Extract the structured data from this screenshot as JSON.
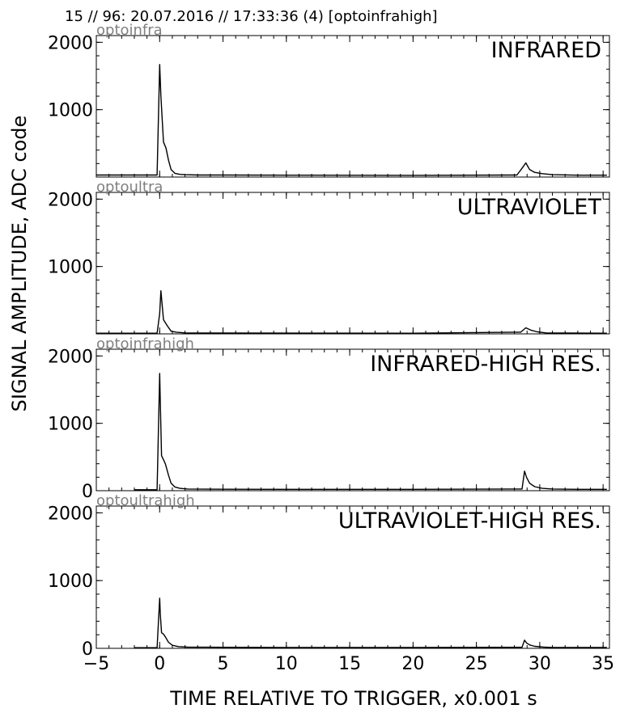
{
  "header": {
    "title": "15 // 96:   20.07.2016 // 17:33:36 (4)  [optoinfrahigh]"
  },
  "chart_data": {
    "type": "line",
    "xlabel": "TIME RELATIVE TO TRIGGER,   x0.001 s",
    "ylabel": "SIGNAL AMPLITUDE,  ADC code",
    "xlim": [
      -5,
      35.5
    ],
    "x_ticks": [
      -5,
      0,
      5,
      10,
      15,
      20,
      25,
      30,
      35
    ],
    "x_tick_labels": [
      "−5",
      "0",
      "5",
      "10",
      "15",
      "20",
      "25",
      "30",
      "35"
    ],
    "grid": false,
    "line_color": "#000000",
    "panels": [
      {
        "channel": "optoinfra",
        "label": "INFRARED",
        "ylim": [
          0,
          2100
        ],
        "y_ticks": [
          1000,
          2000
        ],
        "y_tick_labels": [
          "1000",
          "2000"
        ],
        "x": [
          -5,
          -0.2,
          0.0,
          0.1,
          0.3,
          0.5,
          0.7,
          0.9,
          1.2,
          1.6,
          2,
          3,
          5,
          10,
          20,
          28.2,
          28.6,
          28.9,
          29.2,
          29.6,
          30.2,
          31,
          33,
          35.3
        ],
        "y": [
          30,
          30,
          1670,
          1200,
          520,
          430,
          250,
          110,
          55,
          40,
          35,
          30,
          30,
          28,
          25,
          30,
          130,
          210,
          110,
          70,
          50,
          35,
          28,
          28
        ]
      },
      {
        "channel": "optoultra",
        "label": "ULTRAVIOLET",
        "ylim": [
          0,
          2100
        ],
        "y_ticks": [
          1000,
          2000
        ],
        "y_tick_labels": [
          "1000",
          "2000"
        ],
        "x": [
          -5,
          -0.2,
          0.0,
          0.1,
          0.3,
          0.6,
          0.9,
          1.3,
          2,
          5,
          20,
          28.5,
          28.9,
          29.3,
          29.8,
          30.5,
          35.3
        ],
        "y": [
          10,
          10,
          300,
          640,
          210,
          120,
          40,
          25,
          15,
          12,
          10,
          25,
          90,
          55,
          30,
          15,
          10
        ]
      },
      {
        "channel": "optoinfrahigh",
        "label": "INFRARED-HIGH RES.",
        "ylim": [
          0,
          2100
        ],
        "y_ticks": [
          0,
          1000,
          2000
        ],
        "y_tick_labels": [
          "0",
          "1000",
          "2000"
        ],
        "x": [
          -2,
          -0.2,
          0.0,
          0.05,
          0.15,
          0.3,
          0.45,
          0.7,
          0.9,
          1.2,
          1.6,
          2.2,
          5,
          10,
          20,
          28.6,
          28.8,
          28.95,
          29.2,
          29.6,
          30.2,
          31,
          33,
          35.3
        ],
        "y": [
          15,
          15,
          1740,
          1300,
          520,
          460,
          400,
          230,
          110,
          55,
          35,
          25,
          22,
          20,
          20,
          25,
          290,
          200,
          110,
          60,
          35,
          25,
          20,
          20
        ]
      },
      {
        "channel": "optoultrahigh",
        "label": "ULTRAVIOLET-HIGH RES.",
        "ylim": [
          0,
          2100
        ],
        "y_ticks": [
          0,
          1000,
          2000
        ],
        "y_tick_labels": [
          "0",
          "1000",
          "2000"
        ],
        "x": [
          -2,
          -0.2,
          0.0,
          0.05,
          0.15,
          0.3,
          0.45,
          0.7,
          1.0,
          1.5,
          2.2,
          5,
          10,
          20,
          28.6,
          28.8,
          28.95,
          29.2,
          29.6,
          30.3,
          31,
          35.3
        ],
        "y": [
          10,
          10,
          740,
          500,
          230,
          210,
          170,
          90,
          45,
          25,
          18,
          15,
          12,
          12,
          15,
          120,
          80,
          50,
          30,
          18,
          12,
          12
        ]
      }
    ]
  }
}
